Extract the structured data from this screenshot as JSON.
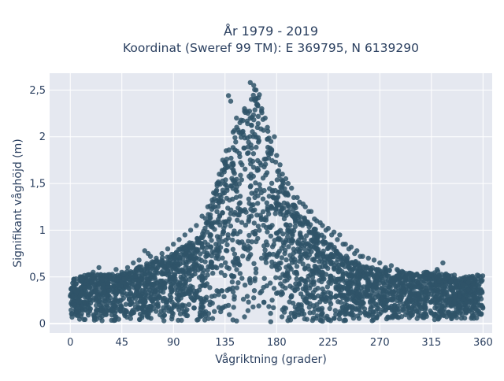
{
  "chart_data": {
    "type": "scatter",
    "title": "År 1979 - 2019",
    "subtitle": "Koordinat (Sweref 99 TM): E 369795, N 6139290",
    "xlabel": "Vågriktning (grader)",
    "ylabel": "Signifikant våghöjd (m)",
    "xlim": [
      -18,
      368
    ],
    "ylim": [
      -0.1,
      2.68
    ],
    "x_ticks": [
      0,
      45,
      90,
      135,
      180,
      225,
      270,
      315,
      360
    ],
    "x_tick_labels": [
      "0",
      "45",
      "90",
      "135",
      "180",
      "225",
      "270",
      "315",
      "360"
    ],
    "y_ticks": [
      0,
      0.5,
      1,
      1.5,
      2,
      2.5
    ],
    "y_tick_labels": [
      "0",
      "0,5",
      "1",
      "1,5",
      "2",
      "2,5"
    ],
    "grid": true,
    "legend": "none",
    "colors": {
      "marker": "#2f5469",
      "plot_bg": "#e5e8f0",
      "grid": "#ffffff",
      "text": "#2a3f5f"
    },
    "envelope": {
      "x": [
        0,
        20,
        45,
        70,
        90,
        110,
        125,
        135,
        145,
        155,
        160,
        165,
        170,
        180,
        190,
        200,
        215,
        225,
        240,
        260,
        280,
        300,
        320,
        340,
        360
      ],
      "y_max": [
        0.5,
        0.55,
        0.55,
        0.68,
        0.78,
        0.95,
        1.4,
        1.85,
        2.2,
        2.45,
        2.6,
        2.52,
        2.3,
        1.75,
        1.42,
        1.22,
        1.05,
        0.9,
        0.75,
        0.62,
        0.6,
        0.55,
        0.58,
        0.5,
        0.55
      ],
      "y_min": [
        0.05,
        0.03,
        0.03,
        0.03,
        0.02,
        0.02,
        0.02,
        0.01,
        0.0,
        0.0,
        -0.01,
        0.0,
        0.0,
        0.01,
        0.01,
        0.02,
        0.02,
        0.02,
        0.02,
        0.03,
        0.03,
        0.03,
        0.03,
        0.05,
        0.05
      ]
    },
    "series": [
      {
        "x": [
          157,
          160,
          162,
          158,
          165,
          163,
          138,
          140,
          145,
          150,
          152,
          170,
          172,
          175,
          180,
          185,
          190,
          195,
          200,
          205,
          210,
          215,
          220,
          225,
          230,
          235,
          240,
          245,
          250,
          255,
          260,
          265,
          270,
          275,
          280,
          285,
          290,
          300,
          305,
          310,
          315,
          320,
          325,
          330,
          335,
          340,
          345,
          350,
          355,
          358,
          5,
          10,
          15,
          20,
          25,
          30,
          35,
          40,
          45,
          50,
          55,
          60,
          65,
          68,
          70,
          75,
          80,
          85,
          90,
          95,
          100,
          105,
          110,
          115,
          120,
          125,
          128,
          130,
          133,
          136,
          142,
          148,
          155,
          167,
          178,
          183,
          188,
          193,
          198,
          203,
          208,
          213,
          218,
          223,
          228,
          233,
          238,
          243,
          248,
          253
        ],
        "y": [
          2.58,
          2.55,
          2.5,
          2.4,
          2.45,
          2.35,
          2.44,
          2.38,
          2.2,
          2.05,
          2.3,
          2.2,
          2.1,
          1.95,
          1.8,
          1.6,
          1.5,
          1.35,
          1.3,
          1.25,
          1.2,
          1.1,
          1.05,
          1.02,
          0.98,
          0.95,
          0.85,
          0.82,
          0.78,
          0.72,
          0.7,
          0.68,
          0.65,
          0.6,
          0.62,
          0.58,
          0.55,
          0.52,
          0.5,
          0.55,
          0.52,
          0.58,
          0.65,
          0.5,
          0.52,
          0.48,
          0.5,
          0.45,
          0.52,
          0.5,
          0.48,
          0.5,
          0.52,
          0.55,
          0.6,
          0.52,
          0.5,
          0.58,
          0.55,
          0.6,
          0.65,
          0.68,
          0.78,
          0.75,
          0.72,
          0.7,
          0.75,
          0.8,
          0.85,
          0.9,
          0.95,
          1.0,
          1.05,
          1.15,
          1.25,
          1.4,
          1.5,
          1.6,
          1.75,
          1.85,
          2.05,
          2.15,
          2.25,
          2.3,
          2.0,
          1.7,
          1.55,
          1.45,
          1.35,
          1.28,
          1.2,
          1.12,
          1.08,
          1.0,
          0.95,
          0.9,
          0.85,
          0.8,
          0.75,
          0.72
        ]
      }
    ]
  }
}
